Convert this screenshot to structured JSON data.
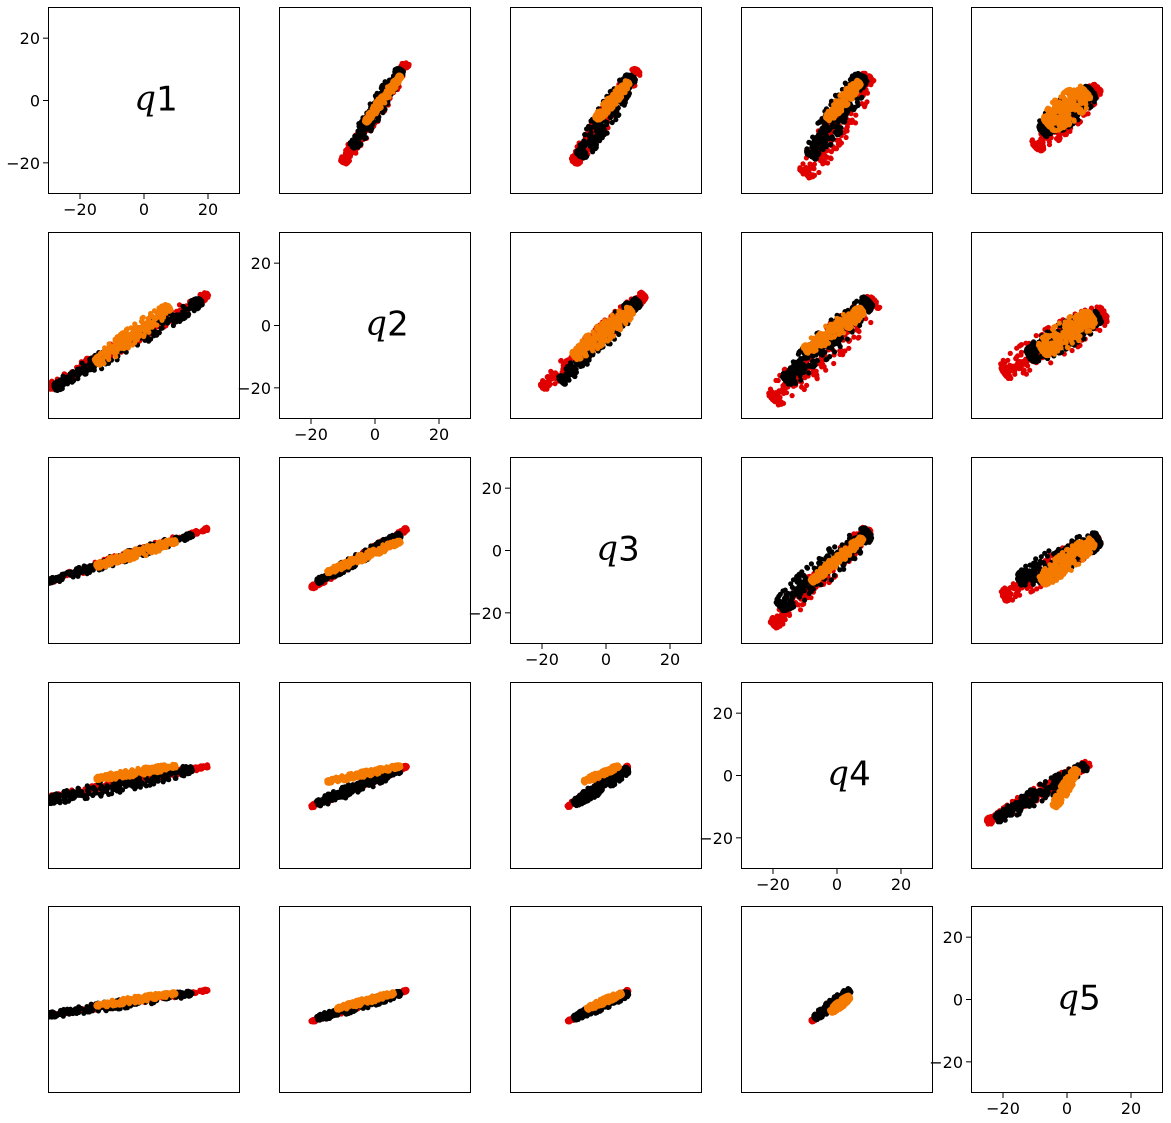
{
  "chart_data": {
    "type": "scatter",
    "grid": false,
    "legend": "none",
    "colors": {
      "red": "#e00000",
      "black": "#000000",
      "orange": "#f57a00"
    },
    "series_order": [
      "red",
      "black",
      "orange"
    ],
    "axis_range": {
      "x": [
        -30,
        30
      ],
      "y": [
        -30,
        30
      ]
    },
    "tick_labels": [
      "−20",
      "0",
      "20"
    ],
    "tick_values": [
      -20,
      0,
      20
    ],
    "variables": [
      "q1",
      "q2",
      "q3",
      "q4",
      "q5"
    ],
    "diagonal_labels": [
      {
        "symbol": "q",
        "index": "1"
      },
      {
        "symbol": "q",
        "index": "2"
      },
      {
        "symbol": "q",
        "index": "3"
      },
      {
        "symbol": "q",
        "index": "4"
      },
      {
        "symbol": "q",
        "index": "5"
      }
    ],
    "panels": [
      {
        "row": 1,
        "col": 2,
        "red": {
          "x": [
            -10,
            10
          ],
          "y": [
            -20,
            12
          ],
          "w": 2.2
        },
        "black": {
          "x": [
            -7,
            8
          ],
          "y": [
            -15,
            10
          ],
          "w": 2.4
        },
        "orange": {
          "x": [
            -3,
            8
          ],
          "y": [
            -7,
            8
          ],
          "w": 1.2
        }
      },
      {
        "row": 1,
        "col": 3,
        "red": {
          "x": [
            -10,
            10
          ],
          "y": [
            -20,
            10
          ],
          "w": 2.6
        },
        "black": {
          "x": [
            -8,
            8
          ],
          "y": [
            -18,
            8
          ],
          "w": 3.2
        },
        "orange": {
          "x": [
            -3,
            7
          ],
          "y": [
            -6,
            6
          ],
          "w": 1.6
        }
      },
      {
        "row": 1,
        "col": 4,
        "red": {
          "x": [
            -10,
            10
          ],
          "y": [
            -24,
            8
          ],
          "w": 4.5
        },
        "black": {
          "x": [
            -8,
            8
          ],
          "y": [
            -18,
            8
          ],
          "w": 4.0
        },
        "orange": {
          "x": [
            -3,
            7
          ],
          "y": [
            -6,
            6
          ],
          "w": 1.8
        }
      },
      {
        "row": 1,
        "col": 5,
        "red": {
          "x": [
            -10,
            10
          ],
          "y": [
            -15,
            4
          ],
          "w": 3.8
        },
        "black": {
          "x": [
            -8,
            8
          ],
          "y": [
            -10,
            3
          ],
          "w": 4.2
        },
        "orange": {
          "x": [
            -6,
            6
          ],
          "y": [
            -8,
            3
          ],
          "w": 4.5
        }
      },
      {
        "row": 2,
        "col": 1,
        "red": {
          "x": [
            -30,
            20
          ],
          "y": [
            -20,
            10
          ],
          "w": 2.0
        },
        "black": {
          "x": [
            -28,
            18
          ],
          "y": [
            -20,
            8
          ],
          "w": 2.5
        },
        "orange": {
          "x": [
            -15,
            8
          ],
          "y": [
            -12,
            6
          ],
          "w": 2.5
        }
      },
      {
        "row": 2,
        "col": 3,
        "red": {
          "x": [
            -20,
            12
          ],
          "y": [
            -20,
            10
          ],
          "w": 2.5
        },
        "black": {
          "x": [
            -14,
            10
          ],
          "y": [
            -18,
            8
          ],
          "w": 3.0
        },
        "orange": {
          "x": [
            -10,
            8
          ],
          "y": [
            -10,
            5
          ],
          "w": 2.8
        }
      },
      {
        "row": 2,
        "col": 4,
        "red": {
          "x": [
            -20,
            12
          ],
          "y": [
            -24,
            8
          ],
          "w": 5.0
        },
        "black": {
          "x": [
            -16,
            10
          ],
          "y": [
            -18,
            8
          ],
          "w": 4.0
        },
        "orange": {
          "x": [
            -10,
            8
          ],
          "y": [
            -8,
            5
          ],
          "w": 2.5
        }
      },
      {
        "row": 2,
        "col": 5,
        "red": {
          "x": [
            -20,
            12
          ],
          "y": [
            -15,
            4
          ],
          "w": 5.0
        },
        "black": {
          "x": [
            -12,
            10
          ],
          "y": [
            -10,
            3
          ],
          "w": 4.0
        },
        "orange": {
          "x": [
            -8,
            8
          ],
          "y": [
            -8,
            3
          ],
          "w": 4.0
        }
      },
      {
        "row": 3,
        "col": 1,
        "red": {
          "x": [
            -30,
            20
          ],
          "y": [
            -10,
            7
          ],
          "w": 1.2
        },
        "black": {
          "x": [
            -30,
            15
          ],
          "y": [
            -10,
            5
          ],
          "w": 1.5
        },
        "orange": {
          "x": [
            -15,
            10
          ],
          "y": [
            -5,
            3
          ],
          "w": 1.5
        }
      },
      {
        "row": 3,
        "col": 2,
        "red": {
          "x": [
            -20,
            10
          ],
          "y": [
            -12,
            7
          ],
          "w": 1.2
        },
        "black": {
          "x": [
            -18,
            8
          ],
          "y": [
            -10,
            5
          ],
          "w": 1.6
        },
        "orange": {
          "x": [
            -15,
            8
          ],
          "y": [
            -7,
            3
          ],
          "w": 1.2
        }
      },
      {
        "row": 3,
        "col": 4,
        "red": {
          "x": [
            -20,
            10
          ],
          "y": [
            -24,
            7
          ],
          "w": 3.0
        },
        "black": {
          "x": [
            -18,
            10
          ],
          "y": [
            -18,
            6
          ],
          "w": 4.0
        },
        "orange": {
          "x": [
            -8,
            8
          ],
          "y": [
            -10,
            4
          ],
          "w": 1.5
        }
      },
      {
        "row": 3,
        "col": 5,
        "red": {
          "x": [
            -20,
            10
          ],
          "y": [
            -15,
            4
          ],
          "w": 3.5
        },
        "black": {
          "x": [
            -15,
            10
          ],
          "y": [
            -10,
            4
          ],
          "w": 4.0
        },
        "orange": {
          "x": [
            -8,
            8
          ],
          "y": [
            -10,
            3
          ],
          "w": 3.0
        }
      },
      {
        "row": 4,
        "col": 1,
        "red": {
          "x": [
            -30,
            20
          ],
          "y": [
            -7,
            3
          ],
          "w": 1.0
        },
        "black": {
          "x": [
            -30,
            15
          ],
          "y": [
            -8,
            2
          ],
          "w": 2.2
        },
        "orange": {
          "x": [
            -15,
            10
          ],
          "y": [
            -1,
            3
          ],
          "w": 1.2
        }
      },
      {
        "row": 4,
        "col": 2,
        "red": {
          "x": [
            -20,
            10
          ],
          "y": [
            -10,
            3
          ],
          "w": 1.0
        },
        "black": {
          "x": [
            -18,
            8
          ],
          "y": [
            -9,
            2
          ],
          "w": 1.8
        },
        "orange": {
          "x": [
            -15,
            8
          ],
          "y": [
            -2,
            3
          ],
          "w": 1.0
        }
      },
      {
        "row": 4,
        "col": 3,
        "red": {
          "x": [
            -12,
            7
          ],
          "y": [
            -10,
            3
          ],
          "w": 1.0
        },
        "black": {
          "x": [
            -10,
            7
          ],
          "y": [
            -9,
            2
          ],
          "w": 1.8
        },
        "orange": {
          "x": [
            -7,
            4
          ],
          "y": [
            -2,
            3
          ],
          "w": 1.0
        }
      },
      {
        "row": 4,
        "col": 5,
        "red": {
          "x": [
            -25,
            7
          ],
          "y": [
            -15,
            4
          ],
          "w": 2.0
        },
        "black": {
          "x": [
            -22,
            6
          ],
          "y": [
            -14,
            3
          ],
          "w": 2.5
        },
        "orange": {
          "x": [
            -4,
            3
          ],
          "y": [
            -10,
            2
          ],
          "w": 1.6
        }
      },
      {
        "row": 5,
        "col": 1,
        "red": {
          "x": [
            -30,
            20
          ],
          "y": [
            -5,
            3
          ],
          "w": 0.8
        },
        "black": {
          "x": [
            -30,
            15
          ],
          "y": [
            -5,
            2
          ],
          "w": 1.4
        },
        "orange": {
          "x": [
            -15,
            10
          ],
          "y": [
            -2,
            2
          ],
          "w": 1.0
        }
      },
      {
        "row": 5,
        "col": 2,
        "red": {
          "x": [
            -20,
            10
          ],
          "y": [
            -7,
            3
          ],
          "w": 0.8
        },
        "black": {
          "x": [
            -18,
            8
          ],
          "y": [
            -6,
            2
          ],
          "w": 1.4
        },
        "orange": {
          "x": [
            -12,
            6
          ],
          "y": [
            -3,
            2
          ],
          "w": 1.0
        }
      },
      {
        "row": 5,
        "col": 3,
        "red": {
          "x": [
            -12,
            7
          ],
          "y": [
            -7,
            3
          ],
          "w": 0.8
        },
        "black": {
          "x": [
            -10,
            7
          ],
          "y": [
            -6,
            2
          ],
          "w": 1.4
        },
        "orange": {
          "x": [
            -6,
            5
          ],
          "y": [
            -3,
            2
          ],
          "w": 1.0
        }
      },
      {
        "row": 5,
        "col": 4,
        "red": {
          "x": [
            -8,
            4
          ],
          "y": [
            -7,
            3
          ],
          "w": 0.8
        },
        "black": {
          "x": [
            -7,
            4
          ],
          "y": [
            -6,
            3
          ],
          "w": 1.4
        },
        "orange": {
          "x": [
            -2,
            4
          ],
          "y": [
            -4,
            1
          ],
          "w": 1.2
        }
      }
    ]
  }
}
